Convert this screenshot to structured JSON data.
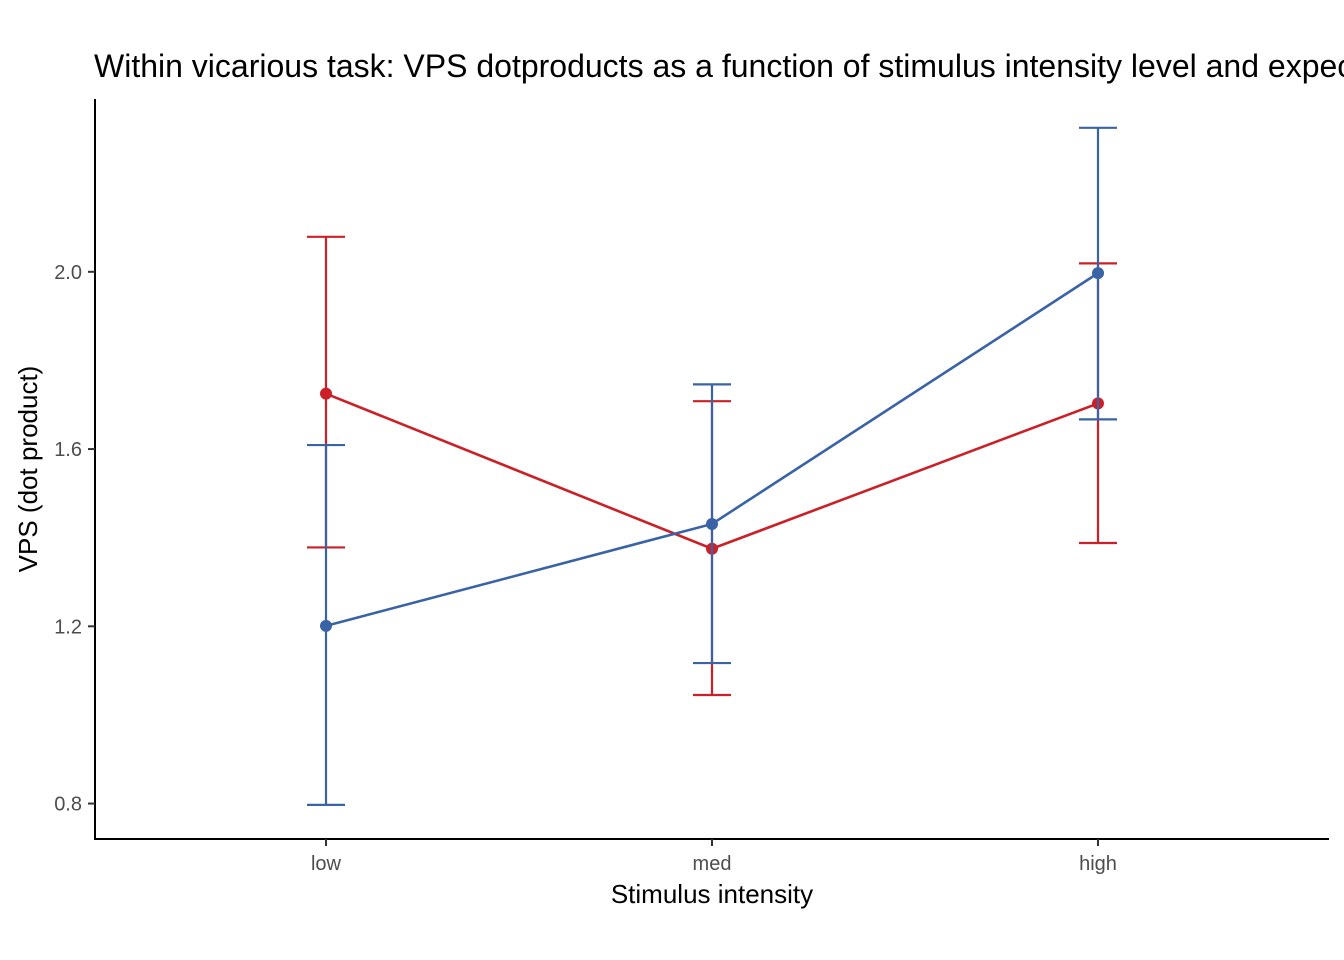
{
  "chart_data": {
    "type": "line",
    "title": "Within vicarious task: VPS dotproducts as a function of stimulus intensity level and expectation",
    "xlabel": "Stimulus intensity",
    "ylabel": "VPS  (dot product)",
    "categories": [
      "low",
      "med",
      "high"
    ],
    "y_ticks": [
      0.8,
      1.2,
      1.6,
      2.0
    ],
    "y_tick_labels": [
      "0.8",
      "1.2",
      "1.6",
      "2.0"
    ],
    "ylim": [
      0.72,
      2.39
    ],
    "grid": false,
    "legend": "none",
    "series": [
      {
        "color": "#cb2027",
        "values": [
          1.725,
          1.375,
          1.703
        ],
        "error_lower": [
          1.378,
          1.045,
          1.388
        ],
        "error_upper": [
          2.079,
          1.708,
          2.019
        ]
      },
      {
        "color": "#3a63a5",
        "values": [
          1.201,
          1.431,
          1.997
        ],
        "error_lower": [
          0.797,
          1.117,
          1.667
        ],
        "error_upper": [
          1.609,
          1.746,
          2.325
        ]
      }
    ]
  }
}
